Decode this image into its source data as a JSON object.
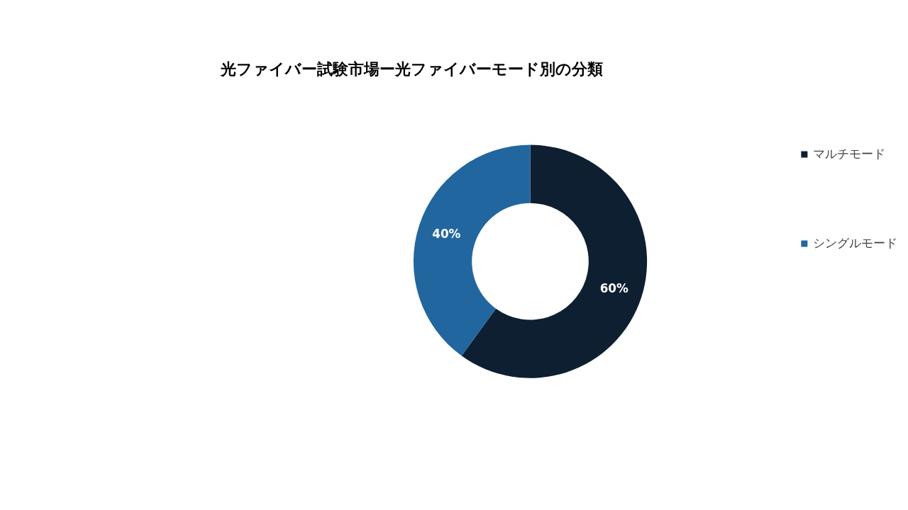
{
  "chart_data": {
    "type": "donut",
    "title": "光ファイバー試験市場ー光ファイバーモード別の分類",
    "categories": [
      "マルチモード",
      "シングルモード"
    ],
    "values": [
      60,
      40
    ],
    "colors": [
      "#0d1f30",
      "#2266a0"
    ],
    "value_labels": [
      "60%",
      "40%"
    ],
    "legend": "right"
  }
}
